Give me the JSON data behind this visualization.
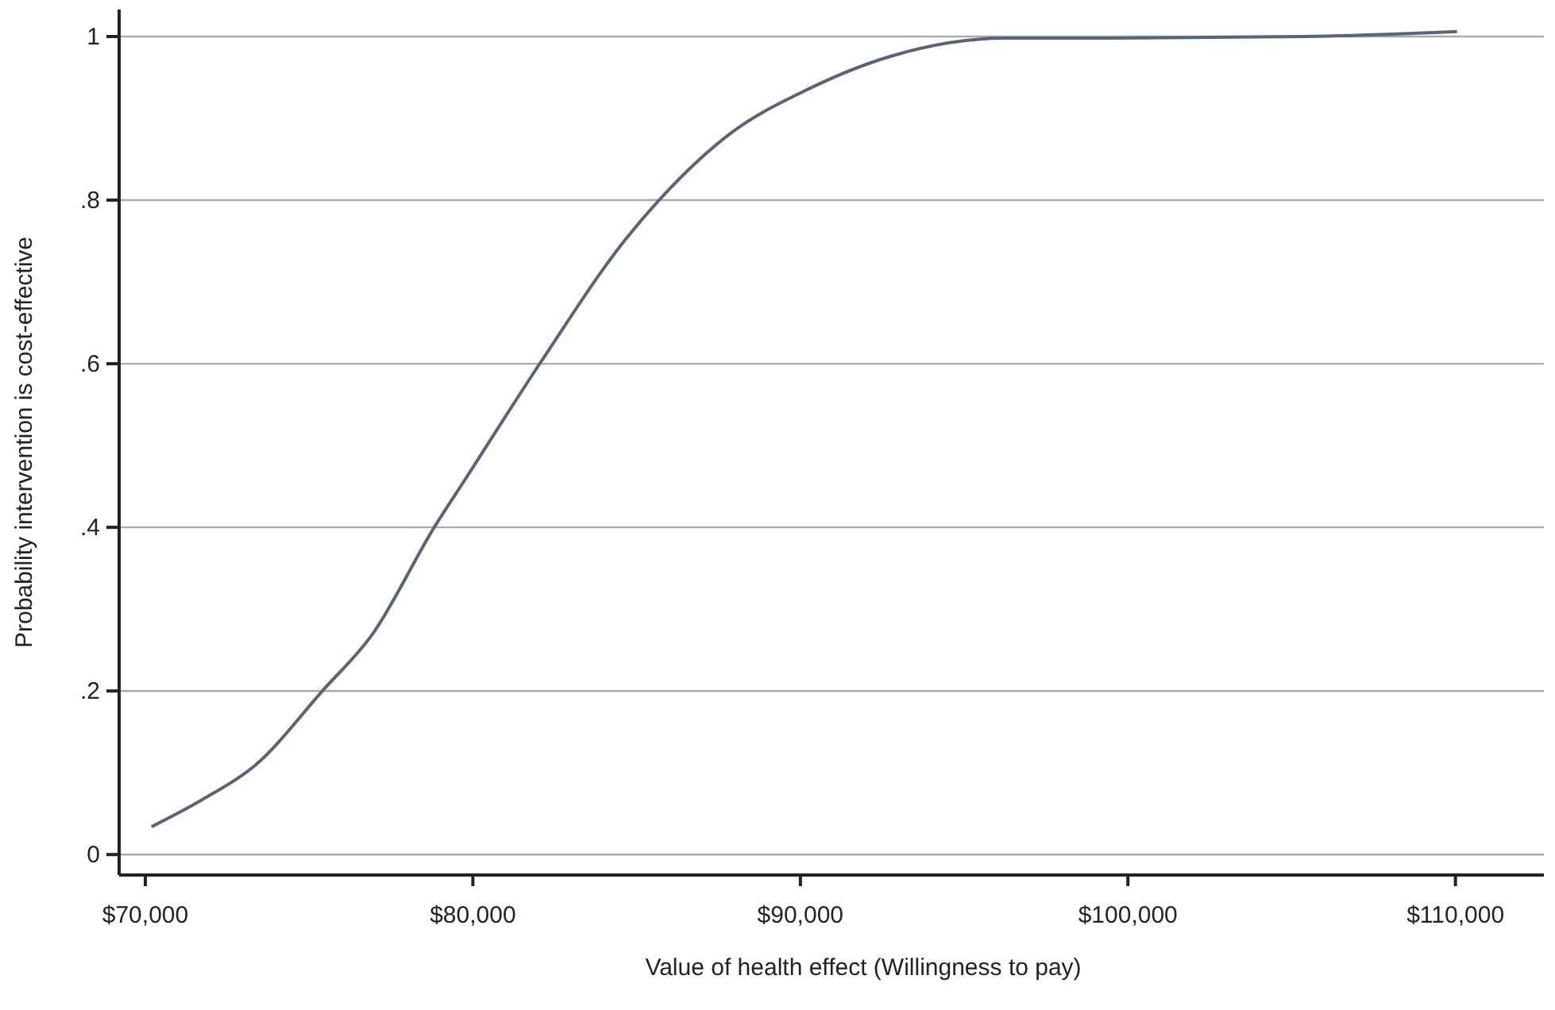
{
  "chart_data": {
    "type": "line",
    "xlabel": "Value of health effect (Willingness to pay)",
    "ylabel": "Probability intervention is cost-effective",
    "xlim": [
      69200,
      112700
    ],
    "xticks": [
      {
        "value": 70000,
        "label": "$70,000"
      },
      {
        "value": 80000,
        "label": "$80,000"
      },
      {
        "value": 90000,
        "label": "$90,000"
      },
      {
        "value": 100000,
        "label": "$100,000"
      },
      {
        "value": 110000,
        "label": "$110,000"
      }
    ],
    "ylim": [
      -0.025,
      1.033
    ],
    "yticks": [
      {
        "value": 0,
        "label": "0"
      },
      {
        "value": 0.2,
        "label": ".2"
      },
      {
        "value": 0.4,
        "label": ".4"
      },
      {
        "value": 0.6,
        "label": ".6"
      },
      {
        "value": 0.8,
        "label": ".8"
      },
      {
        "value": 1,
        "label": "1"
      }
    ],
    "grid": "y",
    "marker": "none",
    "line_style": "solid",
    "x": [
      70190,
      71730,
      73350,
      75450,
      76910,
      78850,
      79820,
      82090,
      84680,
      85730,
      87910,
      90100,
      92770,
      96260,
      99560,
      105390,
      110050
    ],
    "series": [
      {
        "color": "#5a6478",
        "values": [
          0.034,
          0.067,
          0.109,
          0.202,
          0.268,
          0.402,
          0.462,
          0.603,
          0.753,
          0.802,
          0.883,
          0.933,
          0.976,
          0.998,
          0.998,
          1.0,
          1.006
        ]
      }
    ]
  }
}
